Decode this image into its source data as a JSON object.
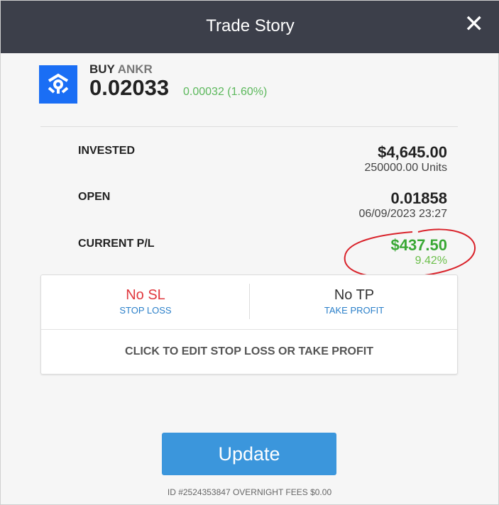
{
  "header": {
    "title": "Trade Story",
    "close_icon": "close-icon"
  },
  "instrument": {
    "action": "BUY",
    "symbol": "ANKR",
    "price": "0.02033",
    "change": "0.00032 (1.60%)",
    "logo_icon": "ankr-logo-icon",
    "brand_color": "#1a6ef5"
  },
  "details": {
    "invested_label": "INVESTED",
    "invested_value": "$4,645.00",
    "units": "250000.00 Units",
    "open_label": "OPEN",
    "open_value": "0.01858",
    "open_date": "06/09/2023 23:27",
    "pl_label": "CURRENT P/L",
    "pl_value": "$437.50",
    "pl_percent": "9.42%"
  },
  "stops": {
    "sl_value": "No SL",
    "sl_label": "STOP LOSS",
    "tp_value": "No TP",
    "tp_label": "TAKE PROFIT",
    "edit_label": "CLICK TO EDIT STOP LOSS OR TAKE PROFIT"
  },
  "update_label": "Update",
  "footer": "ID #2524353847 OVERNIGHT FEES $0.00",
  "colors": {
    "profit": "#3aa835",
    "no_sl": "#e0383e",
    "annotation": "#d9222a"
  }
}
